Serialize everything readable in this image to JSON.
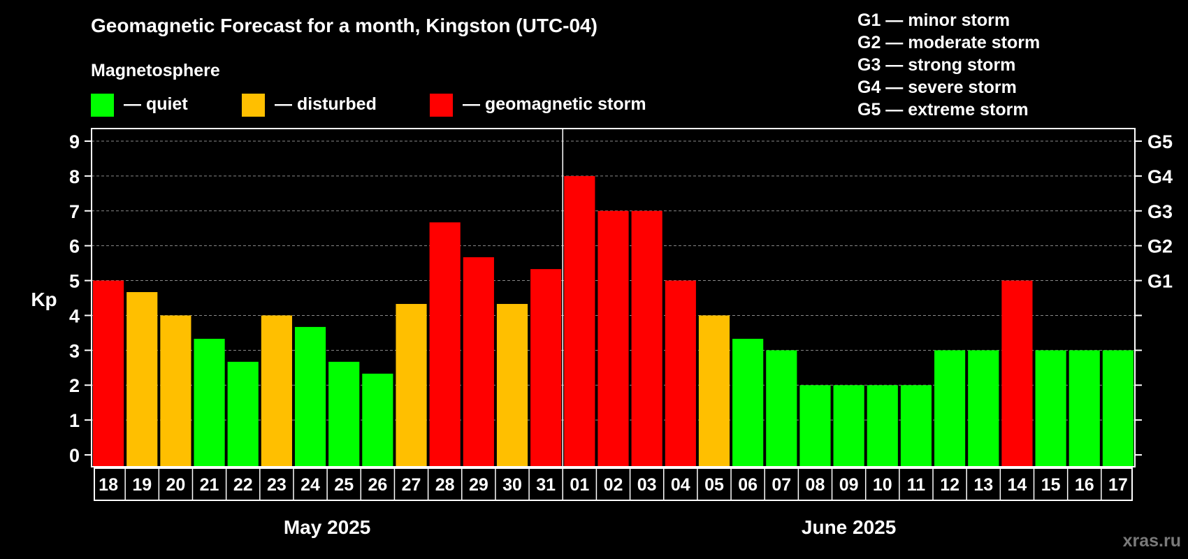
{
  "chart_data": {
    "type": "bar",
    "title": "Geomagnetic Forecast for a month, Kingston (UTC-04)",
    "legend": {
      "title": "Magnetosphere",
      "items": [
        {
          "label": "— quiet",
          "color": "#00ff00"
        },
        {
          "label": "— disturbed",
          "color": "#ffbf00"
        },
        {
          "label": "— geomagnetic storm",
          "color": "#ff0000"
        }
      ]
    },
    "storm_scale": [
      "G1 — minor storm",
      "G2 — moderate storm",
      "G3 — strong storm",
      "G4 — severe storm",
      "G5 — extreme storm"
    ],
    "ylabel": "Kp",
    "ylim": [
      0,
      9
    ],
    "yticks": [
      "0",
      "1",
      "2",
      "3",
      "4",
      "5",
      "6",
      "7",
      "8",
      "9"
    ],
    "right_ticks": [
      {
        "value": 5,
        "label": "G1"
      },
      {
        "value": 6,
        "label": "G2"
      },
      {
        "value": 7,
        "label": "G3"
      },
      {
        "value": 8,
        "label": "G4"
      },
      {
        "value": 9,
        "label": "G5"
      }
    ],
    "grid": true,
    "categories": [
      "18",
      "19",
      "20",
      "21",
      "22",
      "23",
      "24",
      "25",
      "26",
      "27",
      "28",
      "29",
      "30",
      "31",
      "01",
      "02",
      "03",
      "04",
      "05",
      "06",
      "07",
      "08",
      "09",
      "10",
      "11",
      "12",
      "13",
      "14",
      "15",
      "16",
      "17"
    ],
    "values": [
      5,
      4.67,
      4,
      3.33,
      2.67,
      4,
      3.67,
      2.67,
      2.33,
      4.33,
      6.67,
      5.67,
      4.33,
      5.33,
      8,
      7,
      7,
      5,
      4,
      3.33,
      3,
      2,
      2,
      2,
      2,
      3,
      3,
      5,
      3,
      3,
      3
    ],
    "levels": [
      "storm",
      "disturbed",
      "disturbed",
      "quiet",
      "quiet",
      "disturbed",
      "quiet",
      "quiet",
      "quiet",
      "disturbed",
      "storm",
      "storm",
      "disturbed",
      "storm",
      "storm",
      "storm",
      "storm",
      "storm",
      "disturbed",
      "quiet",
      "quiet",
      "quiet",
      "quiet",
      "quiet",
      "quiet",
      "quiet",
      "quiet",
      "storm",
      "quiet",
      "quiet",
      "quiet"
    ],
    "level_colors": {
      "quiet": "#00ff00",
      "disturbed": "#ffbf00",
      "storm": "#ff0000"
    },
    "months": [
      {
        "label": "May 2025",
        "first_index": 0,
        "last_index": 13
      },
      {
        "label": "June 2025",
        "first_index": 14,
        "last_index": 30
      }
    ]
  },
  "watermark": "xras.ru"
}
